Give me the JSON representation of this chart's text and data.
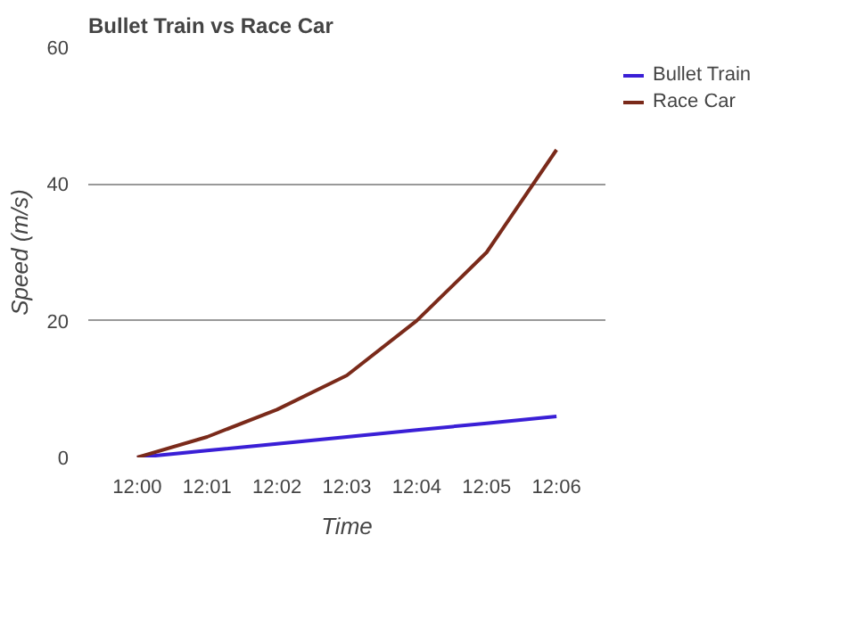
{
  "chart_data": {
    "type": "line",
    "title": "Bullet Train vs Race Car",
    "xlabel": "Time",
    "ylabel": "Speed (m/s)",
    "categories": [
      "12:00",
      "12:01",
      "12:02",
      "12:03",
      "12:04",
      "12:05",
      "12:06"
    ],
    "series": [
      {
        "name": "Bullet Train",
        "color": "#3a1fd6",
        "values": [
          0,
          1,
          2,
          3,
          4,
          5,
          6
        ]
      },
      {
        "name": "Race Car",
        "color": "#7a2a1a",
        "values": [
          0,
          3,
          7,
          12,
          20,
          30,
          45
        ]
      }
    ],
    "ylim": [
      0,
      60
    ],
    "yticks": [
      0,
      20,
      40,
      60
    ],
    "grid": "y",
    "legend": "top right",
    "marker": "none"
  }
}
